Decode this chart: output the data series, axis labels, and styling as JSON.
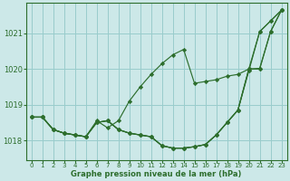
{
  "hours": [
    0,
    1,
    2,
    3,
    4,
    5,
    6,
    7,
    8,
    9,
    10,
    11,
    12,
    13,
    14,
    15,
    16,
    17,
    18,
    19,
    20,
    21,
    22,
    23
  ],
  "line1": [
    1018.65,
    1018.65,
    1018.3,
    1018.2,
    1018.15,
    1018.1,
    1018.5,
    1018.55,
    1018.3,
    1018.2,
    1018.15,
    1018.1,
    1017.85,
    1017.78,
    1017.78,
    1017.82,
    1017.88,
    1018.15,
    1018.5,
    1018.85,
    1020.0,
    1021.05,
    1021.35,
    1021.65
  ],
  "line2": [
    1018.65,
    1018.65,
    1018.3,
    1018.2,
    1018.15,
    1018.1,
    1018.55,
    1018.35,
    1018.55,
    1019.1,
    1019.5,
    1019.85,
    1020.15,
    1020.4,
    1020.55,
    1019.6,
    1019.65,
    1019.7,
    1019.8,
    1019.85,
    1020.0,
    1020.0,
    1021.05,
    1021.65
  ],
  "line3": [
    1018.65,
    1018.65,
    1018.3,
    1018.2,
    1018.15,
    1018.1,
    1018.5,
    1018.55,
    1018.3,
    1018.2,
    1018.15,
    1018.1,
    1017.85,
    1017.78,
    1017.78,
    1017.82,
    1017.88,
    1018.15,
    1018.5,
    1018.85,
    1019.95,
    1021.05,
    1021.35,
    1021.65
  ],
  "line4": [
    1018.65,
    1018.65,
    1018.3,
    1018.2,
    1018.15,
    1018.1,
    1018.5,
    1018.55,
    1018.3,
    1018.2,
    1018.15,
    1018.1,
    1017.85,
    1017.78,
    1017.78,
    1017.82,
    1017.88,
    1018.15,
    1018.5,
    1018.85,
    1020.0,
    1020.02,
    1021.05,
    1021.65
  ],
  "line_color": "#2d6e2d",
  "marker": "D",
  "marker_size": 2.2,
  "bg_color": "#cce8e8",
  "grid_color": "#99cccc",
  "xlabel": "Graphe pression niveau de la mer (hPa)",
  "ylim": [
    1017.45,
    1021.85
  ],
  "yticks": [
    1018,
    1019,
    1020,
    1021
  ],
  "tick_color": "#2d6e2d",
  "axis_color": "#2d6e2d"
}
